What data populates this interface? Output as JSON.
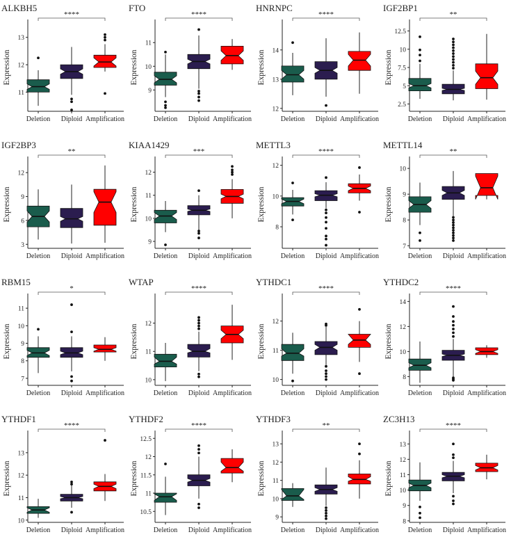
{
  "figure": {
    "ylabel": "Expression",
    "categories": [
      "Deletion",
      "Diploid",
      "Amplification"
    ],
    "colors": {
      "Deletion": "#1a5c4c",
      "Diploid": "#2b1d4f",
      "Amplification": "#ff0000"
    }
  },
  "chart_data": [
    {
      "type": "box",
      "title": "ALKBH5",
      "significance": "****",
      "yticks": [
        11,
        12,
        13
      ],
      "ylim": [
        10.3,
        13.5
      ],
      "boxes": [
        {
          "category": "Deletion",
          "whisker_low": 10.5,
          "q1": 11.0,
          "median": 11.2,
          "q3": 11.45,
          "whisker_high": 11.8,
          "notch_low": 11.1,
          "notch_high": 11.3,
          "outliers": [
            12.25
          ]
        },
        {
          "category": "Diploid",
          "whisker_low": 10.9,
          "q1": 11.5,
          "median": 11.75,
          "q3": 12.0,
          "whisker_high": 12.65,
          "notch_low": 11.65,
          "notch_high": 11.85,
          "outliers": [
            10.75,
            10.65,
            10.35
          ]
        },
        {
          "category": "Amplification",
          "whisker_low": 11.75,
          "q1": 11.9,
          "median": 12.1,
          "q3": 12.35,
          "whisker_high": 12.75,
          "notch_low": 11.95,
          "notch_high": 12.25,
          "outliers": [
            13.1,
            13.0,
            12.9,
            10.95
          ]
        }
      ]
    },
    {
      "type": "box",
      "title": "FTO",
      "significance": "****",
      "yticks": [
        9,
        10,
        11
      ],
      "ylim": [
        8.1,
        11.8
      ],
      "boxes": [
        {
          "category": "Deletion",
          "whisker_low": 8.7,
          "q1": 9.2,
          "median": 9.45,
          "q3": 9.75,
          "whisker_high": 10.5,
          "notch_low": 9.3,
          "notch_high": 9.6,
          "outliers": [
            10.6,
            8.5,
            8.35,
            8.25
          ]
        },
        {
          "category": "Diploid",
          "whisker_low": 9.05,
          "q1": 9.9,
          "median": 10.2,
          "q3": 10.5,
          "whisker_high": 11.3,
          "notch_low": 10.1,
          "notch_high": 10.3,
          "outliers": [
            11.55,
            8.95,
            8.85,
            8.7,
            8.55
          ]
        },
        {
          "category": "Amplification",
          "whisker_low": 9.85,
          "q1": 10.1,
          "median": 10.45,
          "q3": 10.85,
          "whisker_high": 11.15,
          "notch_low": 10.25,
          "notch_high": 10.65,
          "outliers": []
        }
      ]
    },
    {
      "type": "box",
      "title": "HNRNPC",
      "significance": "****",
      "yticks": [
        12,
        13,
        14
      ],
      "ylim": [
        11.9,
        14.9
      ],
      "boxes": [
        {
          "category": "Deletion",
          "whisker_low": 12.45,
          "q1": 12.9,
          "median": 13.15,
          "q3": 13.45,
          "whisker_high": 13.9,
          "notch_low": 13.0,
          "notch_high": 13.3,
          "outliers": [
            14.25
          ]
        },
        {
          "category": "Diploid",
          "whisker_low": 12.4,
          "q1": 13.0,
          "median": 13.3,
          "q3": 13.6,
          "whisker_high": 14.4,
          "notch_low": 13.2,
          "notch_high": 13.4,
          "outliers": [
            12.1
          ]
        },
        {
          "category": "Amplification",
          "whisker_low": 12.5,
          "q1": 13.3,
          "median": 13.65,
          "q3": 13.95,
          "whisker_high": 14.6,
          "notch_low": 13.45,
          "notch_high": 13.85,
          "outliers": []
        }
      ]
    },
    {
      "type": "box",
      "title": "IGF2BP1",
      "significance": "**",
      "yticks": [
        2.5,
        5.0,
        7.5,
        10.0,
        12.5
      ],
      "ylim": [
        1.5,
        13.5
      ],
      "boxes": [
        {
          "category": "Deletion",
          "whisker_low": 3.2,
          "q1": 4.3,
          "median": 5.0,
          "q3": 6.0,
          "whisker_high": 8.0,
          "notch_low": 4.7,
          "notch_high": 5.3,
          "outliers": [
            8.4,
            9.2,
            9.9,
            11.7
          ]
        },
        {
          "category": "Diploid",
          "whisker_low": 3.0,
          "q1": 3.9,
          "median": 4.5,
          "q3": 5.2,
          "whisker_high": 7.1,
          "notch_low": 4.35,
          "notch_high": 4.65,
          "outliers": [
            7.4,
            7.8,
            8.2,
            8.6,
            9.0,
            9.4,
            9.8,
            10.2,
            10.6,
            11.0,
            11.4
          ]
        },
        {
          "category": "Amplification",
          "whisker_low": 3.1,
          "q1": 4.6,
          "median": 6.1,
          "q3": 8.0,
          "whisker_high": 12.1,
          "notch_low": 5.2,
          "notch_high": 7.0,
          "outliers": []
        }
      ]
    },
    {
      "type": "box",
      "title": "IGF2BP3",
      "significance": "**",
      "yticks": [
        3,
        6,
        9,
        12
      ],
      "ylim": [
        2.5,
        13.5
      ],
      "boxes": [
        {
          "category": "Deletion",
          "whisker_low": 3.6,
          "q1": 5.2,
          "median": 6.5,
          "q3": 7.8,
          "whisker_high": 9.9,
          "notch_low": 5.8,
          "notch_high": 7.2,
          "outliers": []
        },
        {
          "category": "Diploid",
          "whisker_low": 3.1,
          "q1": 5.1,
          "median": 6.2,
          "q3": 7.5,
          "whisker_high": 10.5,
          "notch_low": 5.9,
          "notch_high": 6.5,
          "outliers": []
        },
        {
          "category": "Amplification",
          "whisker_low": 3.2,
          "q1": 5.4,
          "median": 8.3,
          "q3": 9.9,
          "whisker_high": 12.9,
          "notch_low": 7.0,
          "notch_high": 9.6,
          "outliers": []
        }
      ]
    },
    {
      "type": "box",
      "title": "KIAA1429",
      "significance": "***",
      "yticks": [
        9,
        10,
        11,
        12
      ],
      "ylim": [
        8.7,
        12.5
      ],
      "boxes": [
        {
          "category": "Deletion",
          "whisker_low": 9.4,
          "q1": 9.8,
          "median": 10.1,
          "q3": 10.35,
          "whisker_high": 10.75,
          "notch_low": 9.95,
          "notch_high": 10.25,
          "outliers": [
            8.85
          ]
        },
        {
          "category": "Diploid",
          "whisker_low": 9.5,
          "q1": 10.15,
          "median": 10.35,
          "q3": 10.55,
          "whisker_high": 11.0,
          "notch_low": 10.3,
          "notch_high": 10.4,
          "outliers": [
            11.2,
            9.45,
            9.35,
            9.15
          ]
        },
        {
          "category": "Amplification",
          "whisker_low": 10.0,
          "q1": 10.65,
          "median": 10.95,
          "q3": 11.25,
          "whisker_high": 11.7,
          "notch_low": 10.85,
          "notch_high": 11.05,
          "outliers": [
            11.9,
            12.0,
            12.1,
            12.25
          ]
        }
      ]
    },
    {
      "type": "box",
      "title": "METTL3",
      "significance": "****",
      "yticks": [
        8,
        10,
        12
      ],
      "ylim": [
        6.6,
        12.3
      ],
      "boxes": [
        {
          "category": "Deletion",
          "whisker_low": 8.8,
          "q1": 9.35,
          "median": 9.65,
          "q3": 9.9,
          "whisker_high": 10.4,
          "notch_low": 9.5,
          "notch_high": 9.8,
          "outliers": [
            10.85,
            8.45
          ]
        },
        {
          "category": "Diploid",
          "whisker_low": 9.2,
          "q1": 9.7,
          "median": 10.05,
          "q3": 10.35,
          "whisker_high": 10.9,
          "notch_low": 9.95,
          "notch_high": 10.15,
          "outliers": [
            11.2,
            9.1,
            8.9,
            8.6,
            8.3,
            7.9,
            7.4,
            7.2,
            6.8
          ]
        },
        {
          "category": "Amplification",
          "whisker_low": 9.7,
          "q1": 10.2,
          "median": 10.5,
          "q3": 10.8,
          "whisker_high": 11.4,
          "notch_low": 10.35,
          "notch_high": 10.65,
          "outliers": [
            11.85,
            8.95
          ]
        }
      ]
    },
    {
      "type": "box",
      "title": "METTL14",
      "significance": "**",
      "yticks": [
        7,
        8,
        9,
        10
      ],
      "ylim": [
        6.9,
        10.3
      ],
      "boxes": [
        {
          "category": "Deletion",
          "whisker_low": 7.8,
          "q1": 8.3,
          "median": 8.6,
          "q3": 8.9,
          "whisker_high": 9.45,
          "notch_low": 8.45,
          "notch_high": 8.75,
          "outliers": [
            7.5,
            7.2
          ]
        },
        {
          "category": "Diploid",
          "whisker_low": 8.15,
          "q1": 8.8,
          "median": 9.05,
          "q3": 9.3,
          "whisker_high": 9.9,
          "notch_low": 8.95,
          "notch_high": 9.15,
          "outliers": [
            8.1,
            8.0,
            7.9,
            7.8,
            7.7,
            7.6,
            7.5,
            7.4,
            7.3,
            7.2
          ]
        },
        {
          "category": "Amplification",
          "whisker_low": 8.8,
          "q1": 8.95,
          "median": 9.25,
          "q3": 9.8,
          "whisker_high": 9.8,
          "notch_low": 8.8,
          "notch_high": 9.7,
          "outliers": []
        }
      ]
    },
    {
      "type": "box",
      "title": "RBM15",
      "significance": "*",
      "yticks": [
        7,
        8,
        9,
        10,
        11
      ],
      "ylim": [
        6.6,
        11.6
      ],
      "boxes": [
        {
          "category": "Deletion",
          "whisker_low": 7.3,
          "q1": 8.2,
          "median": 8.45,
          "q3": 8.75,
          "whisker_high": 9.4,
          "notch_low": 8.3,
          "notch_high": 8.6,
          "outliers": [
            9.8
          ]
        },
        {
          "category": "Diploid",
          "whisker_low": 7.4,
          "q1": 8.2,
          "median": 8.45,
          "q3": 8.75,
          "whisker_high": 9.4,
          "notch_low": 8.35,
          "notch_high": 8.55,
          "outliers": [
            9.65,
            11.2,
            7.1,
            6.85
          ]
        },
        {
          "category": "Amplification",
          "whisker_low": 8.0,
          "q1": 8.5,
          "median": 8.65,
          "q3": 8.9,
          "whisker_high": 9.35,
          "notch_low": 8.55,
          "notch_high": 8.75,
          "outliers": []
        }
      ]
    },
    {
      "type": "box",
      "title": "WTAP",
      "significance": "****",
      "yticks": [
        10,
        11,
        12
      ],
      "ylim": [
        9.8,
        12.9
      ],
      "boxes": [
        {
          "category": "Deletion",
          "whisker_low": 9.95,
          "q1": 10.45,
          "median": 10.65,
          "q3": 10.9,
          "whisker_high": 11.3,
          "notch_low": 10.55,
          "notch_high": 10.8,
          "outliers": []
        },
        {
          "category": "Diploid",
          "whisker_low": 10.3,
          "q1": 10.8,
          "median": 11.0,
          "q3": 11.25,
          "whisker_high": 11.7,
          "notch_low": 10.95,
          "notch_high": 11.1,
          "outliers": [
            11.8,
            11.9,
            12.0,
            12.1,
            12.2,
            10.2,
            10.1
          ]
        },
        {
          "category": "Amplification",
          "whisker_low": 10.7,
          "q1": 11.3,
          "median": 11.6,
          "q3": 11.9,
          "whisker_high": 12.65,
          "notch_low": 11.45,
          "notch_high": 11.75,
          "outliers": []
        }
      ]
    },
    {
      "type": "box",
      "title": "YTHDC1",
      "significance": "****",
      "yticks": [
        10,
        11,
        12
      ],
      "ylim": [
        9.8,
        12.8
      ],
      "boxes": [
        {
          "category": "Deletion",
          "whisker_low": 10.2,
          "q1": 10.65,
          "median": 10.9,
          "q3": 11.2,
          "whisker_high": 11.6,
          "notch_low": 10.8,
          "notch_high": 11.05,
          "outliers": [
            9.95
          ]
        },
        {
          "category": "Diploid",
          "whisker_low": 10.5,
          "q1": 10.85,
          "median": 11.1,
          "q3": 11.3,
          "whisker_high": 11.8,
          "notch_low": 11.0,
          "notch_high": 11.2,
          "outliers": [
            11.85,
            11.9,
            10.45,
            10.3,
            10.2,
            10.1,
            10.0
          ]
        },
        {
          "category": "Amplification",
          "whisker_low": 10.6,
          "q1": 11.1,
          "median": 11.35,
          "q3": 11.55,
          "whisker_high": 12.0,
          "notch_low": 11.2,
          "notch_high": 11.55,
          "outliers": [
            12.4,
            10.2
          ]
        }
      ]
    },
    {
      "type": "box",
      "title": "YTHDC2",
      "significance": "****",
      "yticks": [
        8,
        10,
        12,
        14
      ],
      "ylim": [
        7.3,
        14.3
      ],
      "boxes": [
        {
          "category": "Deletion",
          "whisker_low": 7.5,
          "q1": 8.5,
          "median": 8.9,
          "q3": 9.4,
          "whisker_high": 10.8,
          "notch_low": 8.7,
          "notch_high": 9.1,
          "outliers": []
        },
        {
          "category": "Diploid",
          "whisker_low": 8.0,
          "q1": 9.3,
          "median": 9.7,
          "q3": 10.1,
          "whisker_high": 11.0,
          "notch_low": 9.6,
          "notch_high": 9.8,
          "outliers": [
            11.2,
            11.5,
            11.8,
            12.1,
            12.4,
            12.8,
            13.6,
            7.9,
            7.8,
            7.7
          ]
        },
        {
          "category": "Amplification",
          "whisker_low": 9.5,
          "q1": 9.75,
          "median": 10.0,
          "q3": 10.3,
          "whisker_high": 10.5,
          "notch_low": 9.85,
          "notch_high": 10.15,
          "outliers": []
        }
      ]
    },
    {
      "type": "box",
      "title": "YTHDF1",
      "significance": "****",
      "yticks": [
        10,
        11,
        12,
        13
      ],
      "ylim": [
        9.9,
        13.8
      ],
      "boxes": [
        {
          "category": "Deletion",
          "whisker_low": 10.1,
          "q1": 10.3,
          "median": 10.45,
          "q3": 10.6,
          "whisker_high": 10.95,
          "notch_low": 10.35,
          "notch_high": 10.55,
          "outliers": []
        },
        {
          "category": "Diploid",
          "whisker_low": 10.55,
          "q1": 10.85,
          "median": 11.0,
          "q3": 11.15,
          "whisker_high": 11.55,
          "notch_low": 10.95,
          "notch_high": 11.05,
          "outliers": [
            11.6,
            11.7,
            10.35
          ]
        },
        {
          "category": "Amplification",
          "whisker_low": 10.85,
          "q1": 11.3,
          "median": 11.5,
          "q3": 11.7,
          "whisker_high": 12.05,
          "notch_low": 11.4,
          "notch_high": 11.6,
          "outliers": [
            13.55
          ]
        }
      ]
    },
    {
      "type": "box",
      "title": "YTHDF2",
      "significance": "****",
      "yticks": [
        10.5,
        11.0,
        11.5,
        12.0,
        12.5
      ],
      "ylim": [
        10.2,
        12.6
      ],
      "boxes": [
        {
          "category": "Deletion",
          "whisker_low": 10.4,
          "q1": 10.75,
          "median": 10.9,
          "q3": 11.0,
          "whisker_high": 11.45,
          "notch_low": 10.8,
          "notch_high": 10.98,
          "outliers": [
            11.8
          ]
        },
        {
          "category": "Diploid",
          "whisker_low": 10.85,
          "q1": 11.2,
          "median": 11.35,
          "q3": 11.5,
          "whisker_high": 12.0,
          "notch_low": 11.3,
          "notch_high": 11.4,
          "outliers": [
            12.1,
            12.2,
            12.3,
            10.7,
            10.6
          ]
        },
        {
          "category": "Amplification",
          "whisker_low": 11.3,
          "q1": 11.55,
          "median": 11.7,
          "q3": 11.95,
          "whisker_high": 12.2,
          "notch_low": 11.6,
          "notch_high": 11.85,
          "outliers": []
        }
      ]
    },
    {
      "type": "box",
      "title": "YTHDF3",
      "significance": "**",
      "yticks": [
        9,
        10,
        11,
        12,
        13
      ],
      "ylim": [
        8.7,
        13.5
      ],
      "boxes": [
        {
          "category": "Deletion",
          "whisker_low": 9.55,
          "q1": 9.9,
          "median": 10.15,
          "q3": 10.55,
          "whisker_high": 10.85,
          "notch_low": 9.95,
          "notch_high": 10.5,
          "outliers": []
        },
        {
          "category": "Diploid",
          "whisker_low": 9.6,
          "q1": 10.25,
          "median": 10.5,
          "q3": 10.75,
          "whisker_high": 11.7,
          "notch_low": 10.4,
          "notch_high": 10.6,
          "outliers": [
            9.5,
            9.35,
            9.2,
            9.05,
            8.9
          ]
        },
        {
          "category": "Amplification",
          "whisker_low": 10.0,
          "q1": 10.8,
          "median": 11.05,
          "q3": 11.35,
          "whisker_high": 12.1,
          "notch_low": 10.95,
          "notch_high": 11.2,
          "outliers": [
            12.45,
            13.0
          ]
        }
      ]
    },
    {
      "type": "box",
      "title": "ZC3H13",
      "significance": "****",
      "yticks": [
        8,
        9,
        10,
        11,
        12,
        13
      ],
      "ylim": [
        7.9,
        13.6
      ],
      "boxes": [
        {
          "category": "Deletion",
          "whisker_low": 9.3,
          "q1": 9.95,
          "median": 10.3,
          "q3": 10.65,
          "whisker_high": 11.8,
          "notch_low": 10.15,
          "notch_high": 10.45,
          "outliers": [
            8.9,
            8.5,
            8.2
          ]
        },
        {
          "category": "Diploid",
          "whisker_low": 9.8,
          "q1": 10.6,
          "median": 10.9,
          "q3": 11.15,
          "whisker_high": 11.9,
          "notch_low": 10.8,
          "notch_high": 11.0,
          "outliers": [
            12.1,
            12.3,
            13.0,
            9.6,
            9.3,
            9.1
          ]
        },
        {
          "category": "Amplification",
          "whisker_low": 10.7,
          "q1": 11.2,
          "median": 11.45,
          "q3": 11.75,
          "whisker_high": 12.3,
          "notch_low": 11.3,
          "notch_high": 11.6,
          "outliers": []
        }
      ]
    }
  ]
}
